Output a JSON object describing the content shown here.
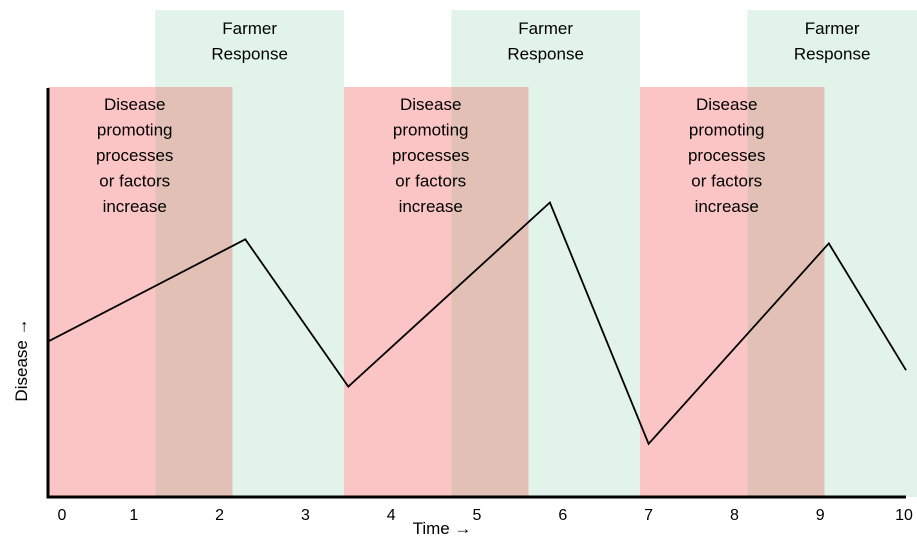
{
  "chart_data": {
    "type": "line",
    "xlabel": "Time →",
    "ylabel": "Disease →",
    "xlim": [
      0,
      10
    ],
    "ylim": [
      0,
      1
    ],
    "x_ticks": [
      "0",
      "1",
      "2",
      "3",
      "4",
      "5",
      "6",
      "7",
      "8",
      "9",
      "10"
    ],
    "grid": false,
    "y_tick_labels_shown": false,
    "series": [
      {
        "x": [
          0,
          2.3,
          3.5,
          5.85,
          7.0,
          9.1,
          10.0
        ],
        "y": [
          0.38,
          0.63,
          0.27,
          0.72,
          0.13,
          0.62,
          0.31
        ],
        "color": "#000000"
      }
    ],
    "bands": [
      {
        "label": "Disease promoting processes or factors increase",
        "lines": [
          "Disease",
          "promoting",
          "processes",
          "or factors",
          "increase"
        ],
        "x_start": 0,
        "x_end": 2.15,
        "color": "#fcc5c5"
      },
      {
        "label": "Farmer Response",
        "lines": [
          "Farmer",
          "Response"
        ],
        "x_start": 1.25,
        "x_end": 3.45,
        "color": "#e2f4ea"
      },
      {
        "label": "Disease promoting processes or factors increase",
        "lines": [
          "Disease",
          "promoting",
          "processes",
          "or factors",
          "increase"
        ],
        "x_start": 3.45,
        "x_end": 5.6,
        "color": "#fcc5c5"
      },
      {
        "label": "Farmer Response",
        "lines": [
          "Farmer",
          "Response"
        ],
        "x_start": 4.7,
        "x_end": 6.9,
        "color": "#e2f4ea"
      },
      {
        "label": "Disease promoting processes or factors increase",
        "lines": [
          "Disease",
          "promoting",
          "processes",
          "or factors",
          "increase"
        ],
        "x_start": 6.9,
        "x_end": 9.05,
        "color": "#fcc5c5"
      },
      {
        "label": "Farmer Response",
        "lines": [
          "Farmer",
          "Response"
        ],
        "x_start": 8.15,
        "x_end": 10.35,
        "color": "#e2f4ea"
      }
    ],
    "overlap_color": "#e2c0b6"
  }
}
